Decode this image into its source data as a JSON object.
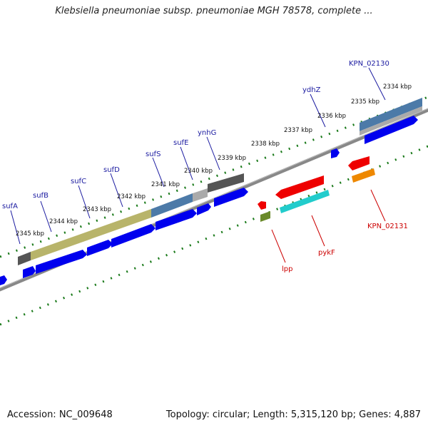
{
  "title": "Klebsiella pneumoniae subsp. pneumoniae MGH 78578, complete ...",
  "footer": {
    "accession": "Accession: NC_009648",
    "summary": "Topology: circular; Length: 5,315,120 bp; Genes: 4,887"
  },
  "colors": {
    "gene_blue": "#0000ee",
    "gene_red": "#ee0000",
    "label_blue": "#1a1aa0",
    "label_red": "#cc0000",
    "tick_green": "#1a7a1a",
    "backbone": "#888888",
    "sufA_olive": "#b8b46a",
    "sufE_steel": "#4c7aa8",
    "ynhG_dark": "#555555",
    "pykF_cyan": "#22cccc",
    "kpn_orange": "#ee8800",
    "lpp_olive": "#6a8a2a"
  },
  "kbp_labels": [
    "2345 kbp",
    "2344 kbp",
    "2343 kbp",
    "2342 kbp",
    "2341 kbp",
    "2340 kbp",
    "2339 kbp",
    "2338 kbp",
    "2337 kbp",
    "2336 kbp",
    "2335 kbp",
    "2334 kbp"
  ],
  "gene_labels_top": [
    "sufA",
    "sufB",
    "sufC",
    "sufD",
    "sufS",
    "sufE",
    "ynhG",
    "ydhZ",
    "KPN_02130"
  ],
  "gene_labels_bottom": [
    "lpp",
    "pykF",
    "KPN_02131"
  ]
}
